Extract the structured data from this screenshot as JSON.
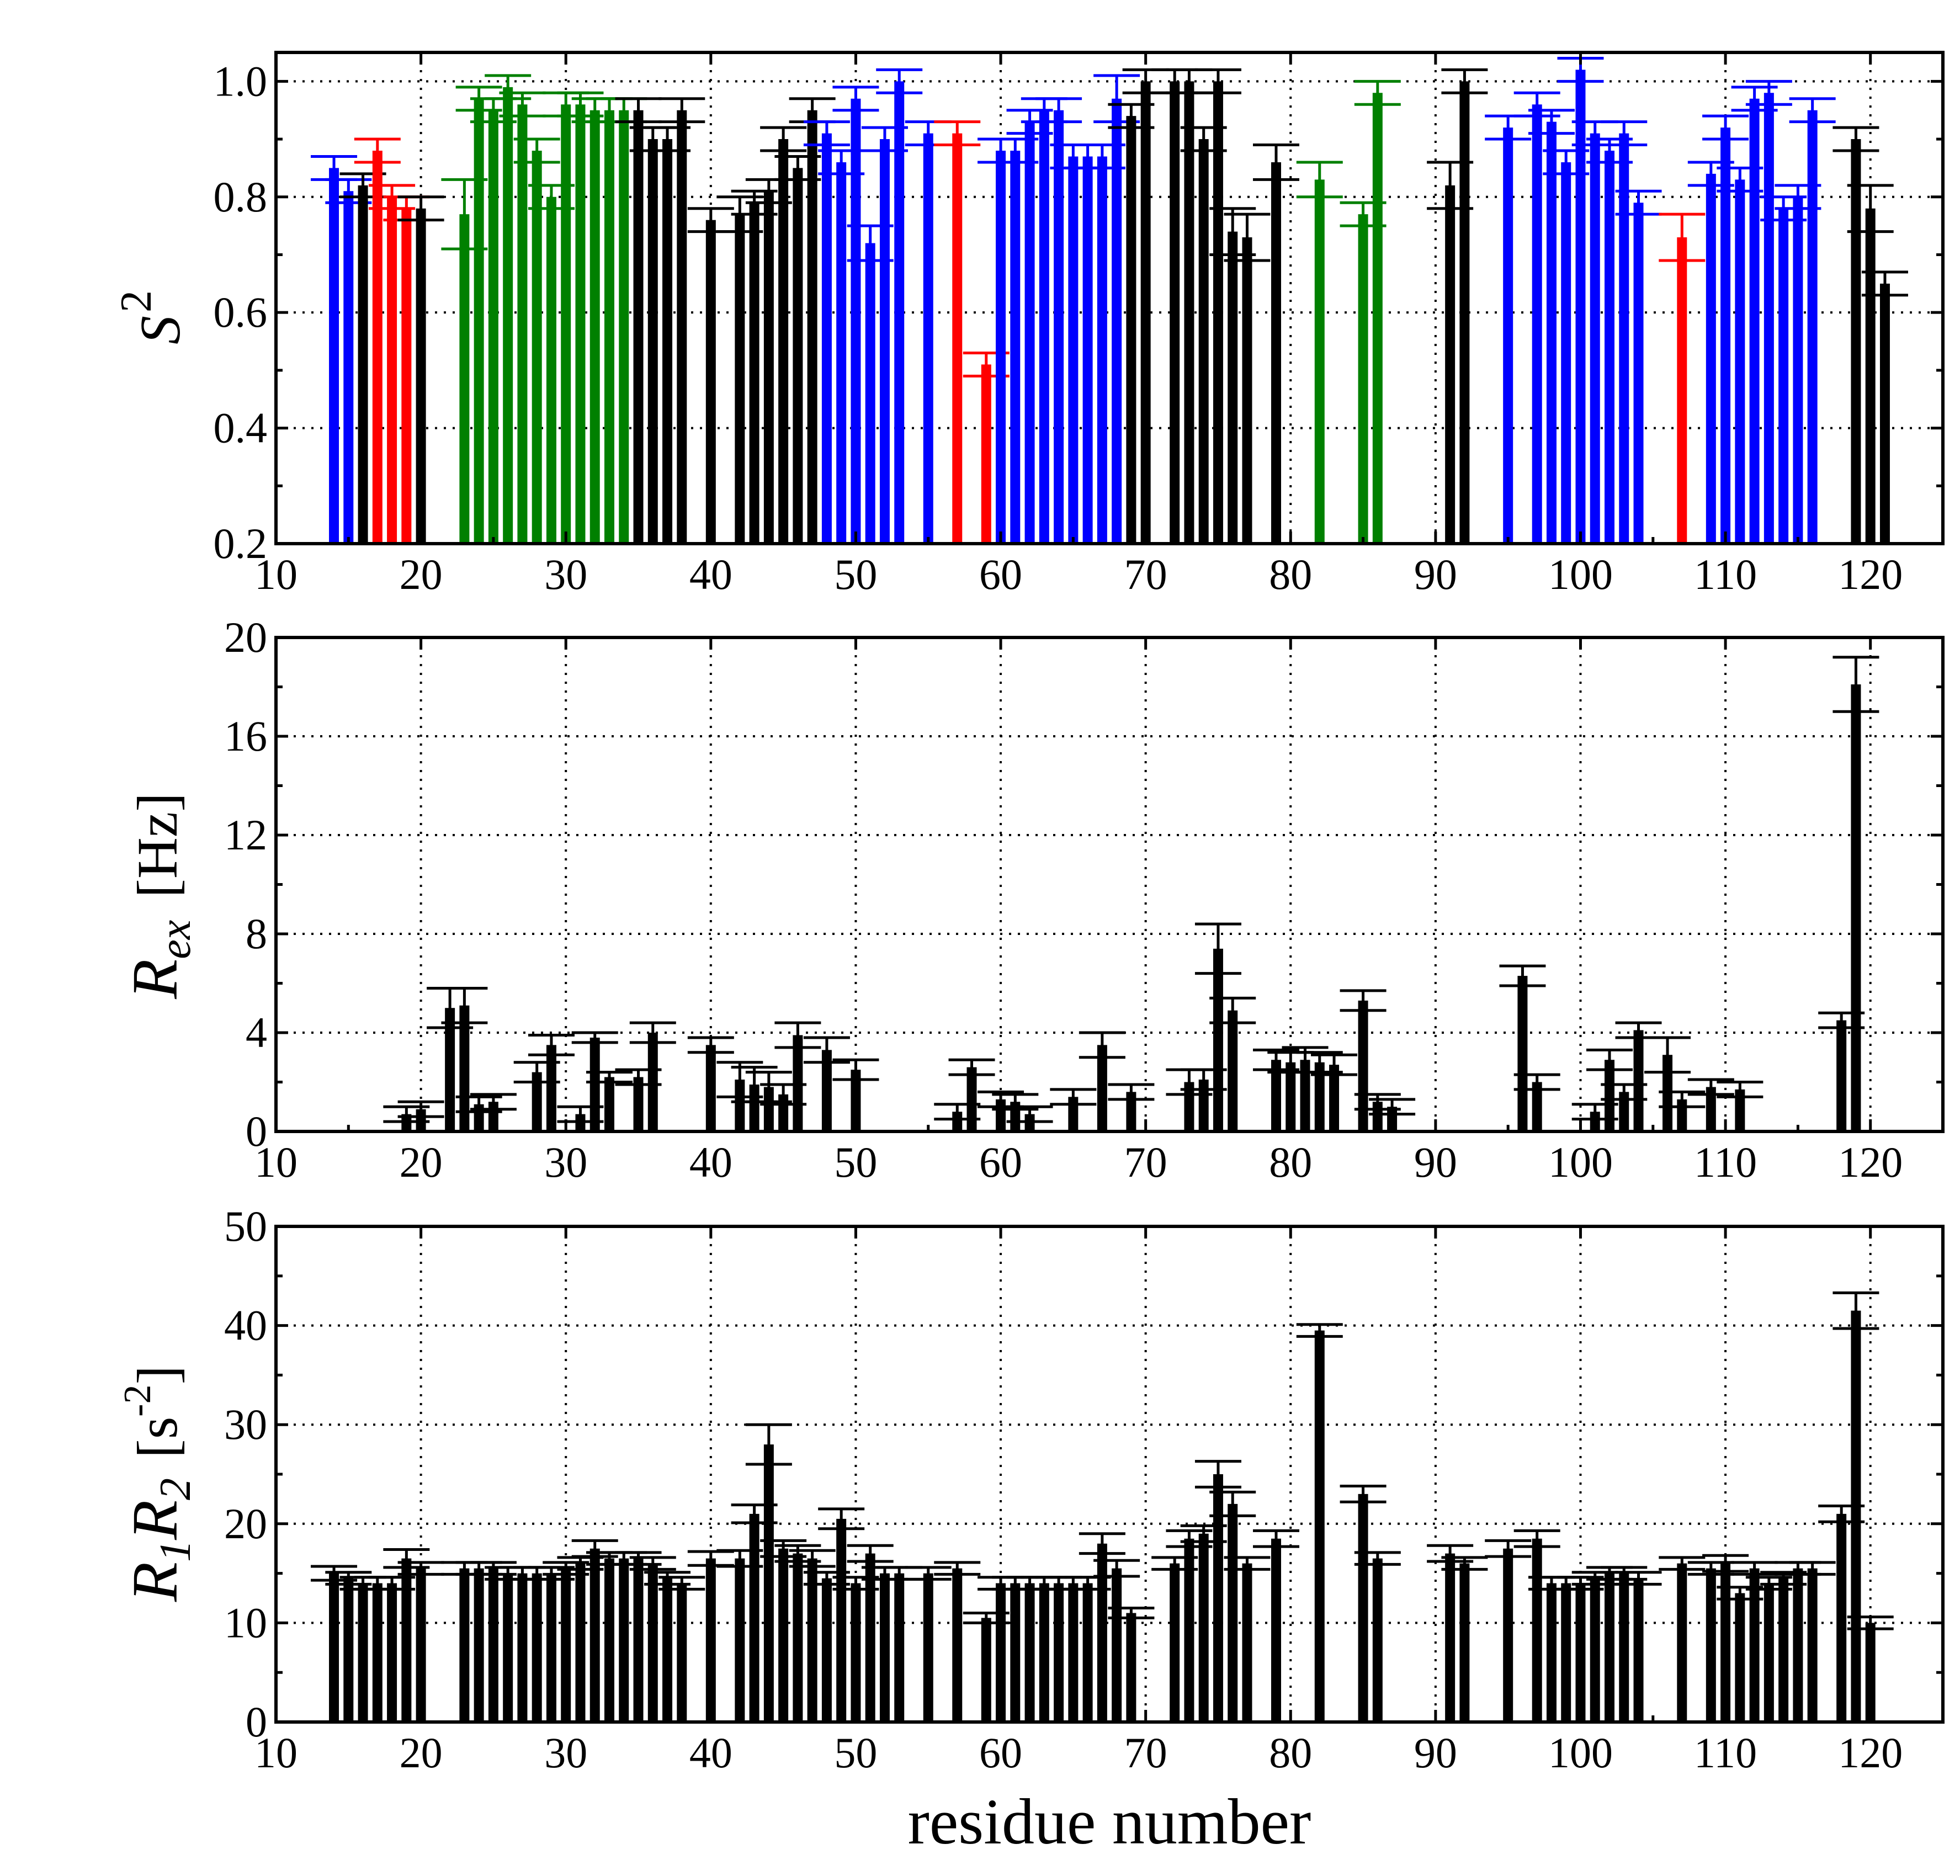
{
  "colors": {
    "blue": "#0000ff",
    "red": "#ff0000",
    "green": "#008000",
    "black": "#000000"
  },
  "chart_data": [
    {
      "type": "bar",
      "id": "s2",
      "title": "",
      "ylabel_main": "S",
      "ylabel_sup": "2",
      "xlabel": "",
      "xlim": [
        10,
        125
      ],
      "ylim": [
        0.2,
        1.05
      ],
      "baseline": 0.2,
      "xticks": [
        10,
        20,
        30,
        40,
        50,
        60,
        70,
        80,
        90,
        100,
        110,
        120
      ],
      "xtick_labels": [
        "10",
        "20",
        "30",
        "40",
        "50",
        "60",
        "70",
        "80",
        "90",
        "100",
        "110",
        "120"
      ],
      "yticks": [
        0.2,
        0.4,
        0.6,
        0.8,
        1.0
      ],
      "ytick_labels": [
        "0.2",
        "0.4",
        "0.6",
        "0.8",
        "1.0"
      ],
      "grid": true,
      "series": [
        {
          "name": "s2",
          "x": [
            14,
            15,
            16,
            17,
            18,
            19,
            20,
            23,
            24,
            25,
            26,
            27,
            28,
            29,
            30,
            31,
            32,
            33,
            34,
            35,
            36,
            37,
            38,
            40,
            42,
            43,
            44,
            45,
            46,
            47,
            48,
            49,
            50,
            51,
            52,
            53,
            55,
            57,
            59,
            60,
            61,
            62,
            63,
            64,
            65,
            66,
            67,
            68,
            69,
            70,
            72,
            73,
            74,
            75,
            76,
            77,
            79,
            82,
            85,
            86,
            91,
            92,
            95,
            97,
            98,
            99,
            100,
            101,
            102,
            103,
            104,
            107,
            109,
            110,
            111,
            112,
            113,
            114,
            115,
            116,
            119,
            120,
            121
          ],
          "y": [
            0.85,
            0.81,
            0.82,
            0.88,
            0.8,
            0.78,
            0.78,
            0.77,
            0.97,
            0.95,
            0.99,
            0.96,
            0.88,
            0.8,
            0.96,
            0.96,
            0.95,
            0.95,
            0.95,
            0.95,
            0.9,
            0.9,
            0.95,
            0.76,
            0.77,
            0.79,
            0.81,
            0.9,
            0.85,
            0.95,
            0.91,
            0.86,
            0.97,
            0.72,
            0.9,
            1.0,
            0.91,
            0.91,
            0.51,
            0.88,
            0.88,
            0.93,
            0.95,
            0.95,
            0.87,
            0.87,
            0.87,
            0.97,
            0.94,
            1.0,
            1.0,
            1.0,
            0.9,
            1.0,
            0.74,
            0.73,
            0.86,
            0.83,
            0.77,
            0.98,
            0.82,
            1.0,
            0.92,
            0.96,
            0.93,
            0.86,
            1.02,
            0.91,
            0.88,
            0.91,
            0.79,
            0.73,
            0.84,
            0.92,
            0.83,
            0.97,
            0.98,
            0.78,
            0.8,
            0.95,
            0.9,
            0.78,
            0.65
          ],
          "err": [
            0.02,
            0.02,
            0.02,
            0.02,
            0.02,
            0.02,
            0.02,
            0.06,
            0.02,
            0.02,
            0.02,
            0.02,
            0.02,
            0.02,
            0.02,
            0.02,
            0.02,
            0.02,
            0.02,
            0.02,
            0.02,
            0.02,
            0.02,
            0.02,
            0.03,
            0.02,
            0.02,
            0.02,
            0.02,
            0.02,
            0.02,
            0.02,
            0.02,
            0.03,
            0.02,
            0.02,
            0.02,
            0.02,
            0.02,
            0.02,
            0.02,
            0.02,
            0.02,
            0.02,
            0.02,
            0.02,
            0.02,
            0.04,
            0.02,
            0.02,
            0.02,
            0.02,
            0.02,
            0.02,
            0.04,
            0.04,
            0.03,
            0.03,
            0.02,
            0.02,
            0.04,
            0.02,
            0.02,
            0.02,
            0.02,
            0.02,
            0.02,
            0.02,
            0.02,
            0.02,
            0.02,
            0.04,
            0.02,
            0.02,
            0.02,
            0.02,
            0.02,
            0.02,
            0.02,
            0.02,
            0.02,
            0.04,
            0.02
          ],
          "colors": [
            "blue",
            "blue",
            "black",
            "red",
            "red",
            "red",
            "black",
            "green",
            "green",
            "green",
            "green",
            "green",
            "green",
            "green",
            "green",
            "green",
            "green",
            "green",
            "green",
            "black",
            "black",
            "black",
            "black",
            "black",
            "black",
            "black",
            "black",
            "black",
            "black",
            "black",
            "blue",
            "blue",
            "blue",
            "blue",
            "blue",
            "blue",
            "blue",
            "red",
            "red",
            "blue",
            "blue",
            "blue",
            "blue",
            "blue",
            "blue",
            "blue",
            "blue",
            "blue",
            "black",
            "black",
            "black",
            "black",
            "black",
            "black",
            "black",
            "black",
            "black",
            "green",
            "green",
            "green",
            "black",
            "black",
            "blue",
            "blue",
            "blue",
            "blue",
            "blue",
            "blue",
            "blue",
            "blue",
            "blue",
            "red",
            "blue",
            "blue",
            "blue",
            "blue",
            "blue",
            "blue",
            "blue",
            "blue",
            "black",
            "black",
            "black"
          ]
        }
      ]
    },
    {
      "type": "bar",
      "id": "rex",
      "title": "",
      "ylabel_main": "R",
      "ylabel_sub": "ex",
      "ylabel_unit": "[Hz]",
      "xlabel": "",
      "xlim": [
        10,
        125
      ],
      "ylim": [
        0,
        20
      ],
      "baseline": 0,
      "xticks": [
        10,
        20,
        30,
        40,
        50,
        60,
        70,
        80,
        90,
        100,
        110,
        120
      ],
      "xtick_labels": [
        "10",
        "20",
        "30",
        "40",
        "50",
        "60",
        "70",
        "80",
        "90",
        "100",
        "110",
        "120"
      ],
      "yticks": [
        0,
        4,
        8,
        12,
        16,
        20
      ],
      "ytick_labels": [
        "0",
        "4",
        "8",
        "12",
        "16",
        "20"
      ],
      "grid": true,
      "series": [
        {
          "name": "Rex",
          "color": "black",
          "x": [
            19,
            20,
            22,
            23,
            24,
            25,
            28,
            29,
            31,
            32,
            33,
            35,
            36,
            40,
            42,
            43,
            44,
            45,
            46,
            48,
            50,
            57,
            58,
            60,
            61,
            62,
            65,
            67,
            69,
            73,
            74,
            75,
            76,
            79,
            80,
            81,
            82,
            83,
            85,
            86,
            87,
            96,
            97,
            101,
            102,
            103,
            104,
            106,
            107,
            109,
            111,
            118,
            119
          ],
          "y": [
            0.7,
            0.9,
            5.0,
            5.1,
            1.1,
            1.2,
            2.4,
            3.5,
            0.7,
            3.8,
            2.2,
            2.2,
            4.0,
            3.5,
            2.1,
            1.9,
            1.8,
            1.5,
            3.9,
            3.3,
            2.5,
            0.8,
            2.6,
            1.3,
            1.2,
            0.7,
            1.4,
            3.5,
            1.6,
            2.0,
            2.1,
            7.4,
            4.9,
            2.9,
            2.8,
            2.9,
            2.8,
            2.7,
            5.3,
            1.2,
            1.0,
            6.3,
            2.0,
            0.8,
            2.9,
            1.6,
            4.1,
            3.1,
            1.3,
            1.8,
            1.7,
            4.5,
            18.1
          ],
          "err": [
            0.3,
            0.3,
            0.8,
            0.7,
            0.3,
            0.3,
            0.4,
            0.4,
            0.3,
            0.2,
            0.2,
            0.3,
            0.4,
            0.3,
            0.7,
            0.7,
            0.6,
            0.4,
            0.5,
            0.5,
            0.4,
            0.3,
            0.3,
            0.3,
            0.3,
            0.3,
            0.3,
            0.5,
            0.3,
            0.5,
            0.4,
            1.0,
            0.5,
            0.4,
            0.4,
            0.5,
            0.4,
            0.4,
            0.4,
            0.3,
            0.3,
            0.4,
            0.3,
            0.3,
            0.4,
            0.3,
            0.3,
            0.7,
            0.3,
            0.3,
            0.3,
            0.3,
            1.1
          ]
        }
      ]
    },
    {
      "type": "bar",
      "id": "r1r2",
      "title": "",
      "ylabel_r1": "R",
      "ylabel_sub1": "1",
      "ylabel_r2": "R",
      "ylabel_sub2": "2",
      "ylabel_unit_open": "[s",
      "ylabel_unit_sup": "-2",
      "ylabel_unit_close": "]",
      "xlabel": "residue number",
      "xlim": [
        10,
        125
      ],
      "ylim": [
        0,
        50
      ],
      "baseline": 0,
      "xticks": [
        10,
        20,
        30,
        40,
        50,
        60,
        70,
        80,
        90,
        100,
        110,
        120
      ],
      "xtick_labels": [
        "10",
        "20",
        "30",
        "40",
        "50",
        "60",
        "70",
        "80",
        "90",
        "100",
        "110",
        "120"
      ],
      "yticks": [
        0,
        10,
        20,
        30,
        40,
        50
      ],
      "ytick_labels": [
        "0",
        "10",
        "20",
        "30",
        "40",
        "50"
      ],
      "grid": true,
      "series": [
        {
          "name": "R1R2",
          "color": "black",
          "x": [
            14,
            15,
            16,
            17,
            18,
            19,
            20,
            23,
            24,
            25,
            26,
            27,
            28,
            29,
            30,
            31,
            32,
            33,
            34,
            35,
            36,
            37,
            38,
            40,
            42,
            43,
            44,
            45,
            46,
            47,
            48,
            49,
            50,
            51,
            52,
            53,
            55,
            57,
            59,
            60,
            61,
            62,
            63,
            64,
            65,
            66,
            67,
            68,
            69,
            72,
            73,
            74,
            75,
            76,
            77,
            79,
            82,
            85,
            86,
            91,
            92,
            95,
            97,
            98,
            99,
            100,
            101,
            102,
            103,
            104,
            107,
            109,
            110,
            111,
            112,
            113,
            114,
            115,
            116,
            118,
            119,
            120
          ],
          "y": [
            15.0,
            14.5,
            14.0,
            14.0,
            14.0,
            16.5,
            15.5,
            15.5,
            15.5,
            15.5,
            15.0,
            15.0,
            15.0,
            15.0,
            15.5,
            16.0,
            17.5,
            16.5,
            16.5,
            16.5,
            16.0,
            14.5,
            14.0,
            16.5,
            16.5,
            21.0,
            28.0,
            17.5,
            17.0,
            16.5,
            14.5,
            20.5,
            14.0,
            17.0,
            15.0,
            15.0,
            15.0,
            15.5,
            10.5,
            14.0,
            14.0,
            14.0,
            14.0,
            14.0,
            14.0,
            14.0,
            18.0,
            15.5,
            11.0,
            16.0,
            18.5,
            19.0,
            25.0,
            22.0,
            16.0,
            18.5,
            39.5,
            23.0,
            16.5,
            17.0,
            16.0,
            17.5,
            18.5,
            14.0,
            14.0,
            14.0,
            14.5,
            15.0,
            15.0,
            14.5,
            16.0,
            15.5,
            16.0,
            13.0,
            15.5,
            14.0,
            14.5,
            15.5,
            15.5,
            21.0,
            41.5,
            10.0
          ],
          "err": [
            0.7,
            0.6,
            0.6,
            0.6,
            0.6,
            0.9,
            0.6,
            0.6,
            0.6,
            0.6,
            0.6,
            0.6,
            0.6,
            0.6,
            0.6,
            0.6,
            0.8,
            0.6,
            0.6,
            0.6,
            0.6,
            0.6,
            0.6,
            0.7,
            0.8,
            0.9,
            2.0,
            0.8,
            0.8,
            0.8,
            0.6,
            1.0,
            0.6,
            0.8,
            0.6,
            0.6,
            0.6,
            0.6,
            0.5,
            0.6,
            0.6,
            0.6,
            0.6,
            0.6,
            0.6,
            0.6,
            1.0,
            0.8,
            0.5,
            0.6,
            0.8,
            0.8,
            1.3,
            1.2,
            0.6,
            0.8,
            0.6,
            0.8,
            0.6,
            0.8,
            0.6,
            0.8,
            0.8,
            0.6,
            0.6,
            0.6,
            0.6,
            0.6,
            0.6,
            0.6,
            0.6,
            0.6,
            0.8,
            0.6,
            0.6,
            0.6,
            0.6,
            0.6,
            0.6,
            0.8,
            1.8,
            0.6
          ]
        }
      ]
    }
  ]
}
